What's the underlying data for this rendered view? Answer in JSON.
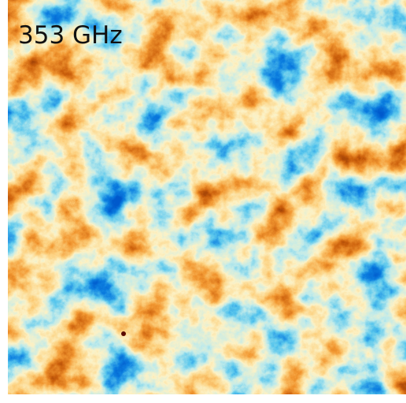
{
  "label": "353 GHz"
}
